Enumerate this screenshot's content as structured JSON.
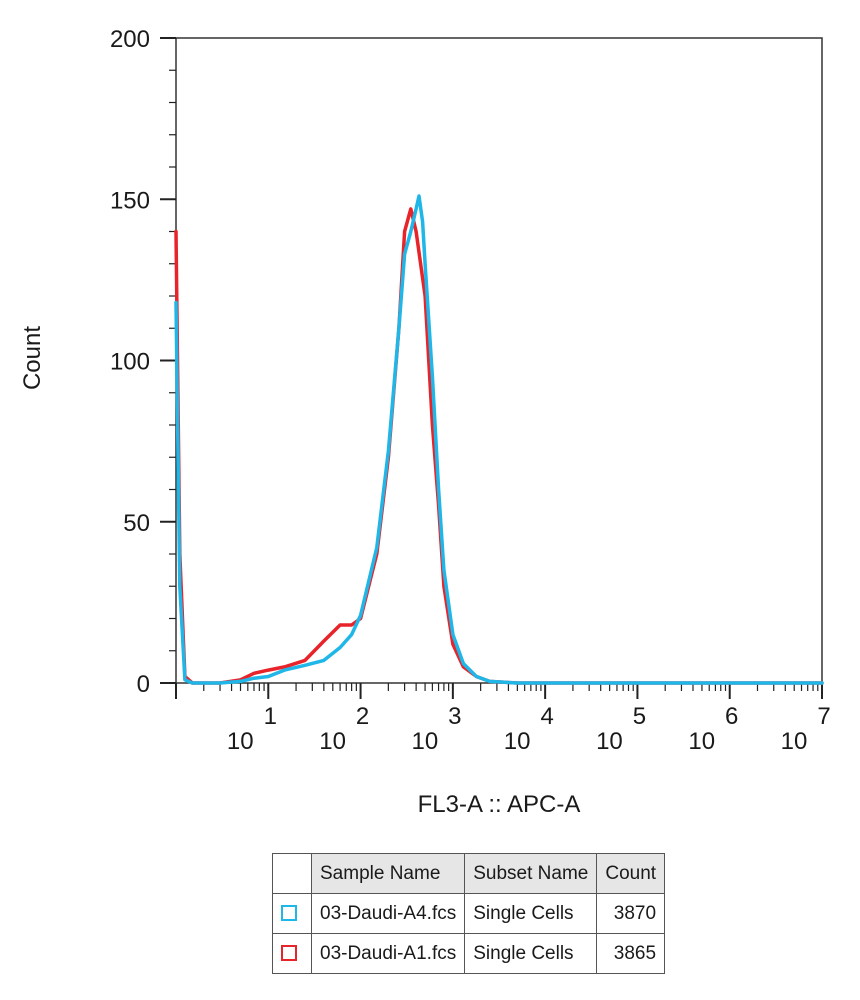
{
  "chart_data": {
    "type": "line",
    "xlabel": "FL3-A :: APC-A",
    "ylabel": "Count",
    "x_scale": "log",
    "xlim": [
      1,
      10000000
    ],
    "ylim": [
      0,
      200
    ],
    "y_ticks": [
      "200",
      "150",
      "100",
      "50",
      "0"
    ],
    "x_tick_bases": [
      "10",
      "10",
      "10",
      "10",
      "10",
      "10",
      "10"
    ],
    "x_tick_exponents": [
      "1",
      "2",
      "3",
      "4",
      "5",
      "6",
      "7"
    ],
    "grid": false,
    "series": [
      {
        "name": "03-Daudi-A1.fcs",
        "color": "#e8242b",
        "points": [
          [
            1,
            140
          ],
          [
            1.1,
            40
          ],
          [
            1.25,
            2
          ],
          [
            1.5,
            0
          ],
          [
            3,
            0
          ],
          [
            5,
            1
          ],
          [
            7,
            3
          ],
          [
            10,
            4
          ],
          [
            15,
            5
          ],
          [
            25,
            7
          ],
          [
            40,
            13
          ],
          [
            60,
            18
          ],
          [
            80,
            18
          ],
          [
            100,
            20
          ],
          [
            150,
            40
          ],
          [
            200,
            70
          ],
          [
            260,
            110
          ],
          [
            300,
            140
          ],
          [
            350,
            147
          ],
          [
            400,
            140
          ],
          [
            500,
            120
          ],
          [
            600,
            80
          ],
          [
            700,
            55
          ],
          [
            800,
            30
          ],
          [
            1000,
            12
          ],
          [
            1300,
            5
          ],
          [
            1800,
            2
          ],
          [
            2500,
            0.5
          ],
          [
            5000,
            0
          ],
          [
            100000,
            0
          ],
          [
            10000000,
            0
          ]
        ]
      },
      {
        "name": "03-Daudi-A4.fcs",
        "color": "#1fb6e8",
        "points": [
          [
            1,
            118
          ],
          [
            1.1,
            30
          ],
          [
            1.25,
            1
          ],
          [
            1.5,
            0
          ],
          [
            3,
            0
          ],
          [
            5,
            0.5
          ],
          [
            7,
            1.5
          ],
          [
            10,
            2
          ],
          [
            15,
            4
          ],
          [
            25,
            5.5
          ],
          [
            40,
            7
          ],
          [
            60,
            11
          ],
          [
            80,
            15
          ],
          [
            100,
            21
          ],
          [
            150,
            42
          ],
          [
            200,
            72
          ],
          [
            260,
            110
          ],
          [
            300,
            133
          ],
          [
            350,
            140
          ],
          [
            400,
            147
          ],
          [
            430,
            151
          ],
          [
            470,
            143
          ],
          [
            500,
            130
          ],
          [
            600,
            95
          ],
          [
            700,
            60
          ],
          [
            800,
            35
          ],
          [
            1000,
            15
          ],
          [
            1300,
            6
          ],
          [
            1800,
            2
          ],
          [
            2500,
            0.5
          ],
          [
            5000,
            0
          ],
          [
            100000,
            0
          ],
          [
            10000000,
            0
          ]
        ]
      }
    ]
  },
  "legend": {
    "headers": {
      "sample": "Sample Name",
      "subset": "Subset Name",
      "count": "Count"
    },
    "rows": [
      {
        "color": "#1fb6e8",
        "sample": "03-Daudi-A4.fcs",
        "subset": "Single Cells",
        "count": "3870"
      },
      {
        "color": "#e8242b",
        "sample": "03-Daudi-A1.fcs",
        "subset": "Single Cells",
        "count": "3865"
      }
    ]
  }
}
